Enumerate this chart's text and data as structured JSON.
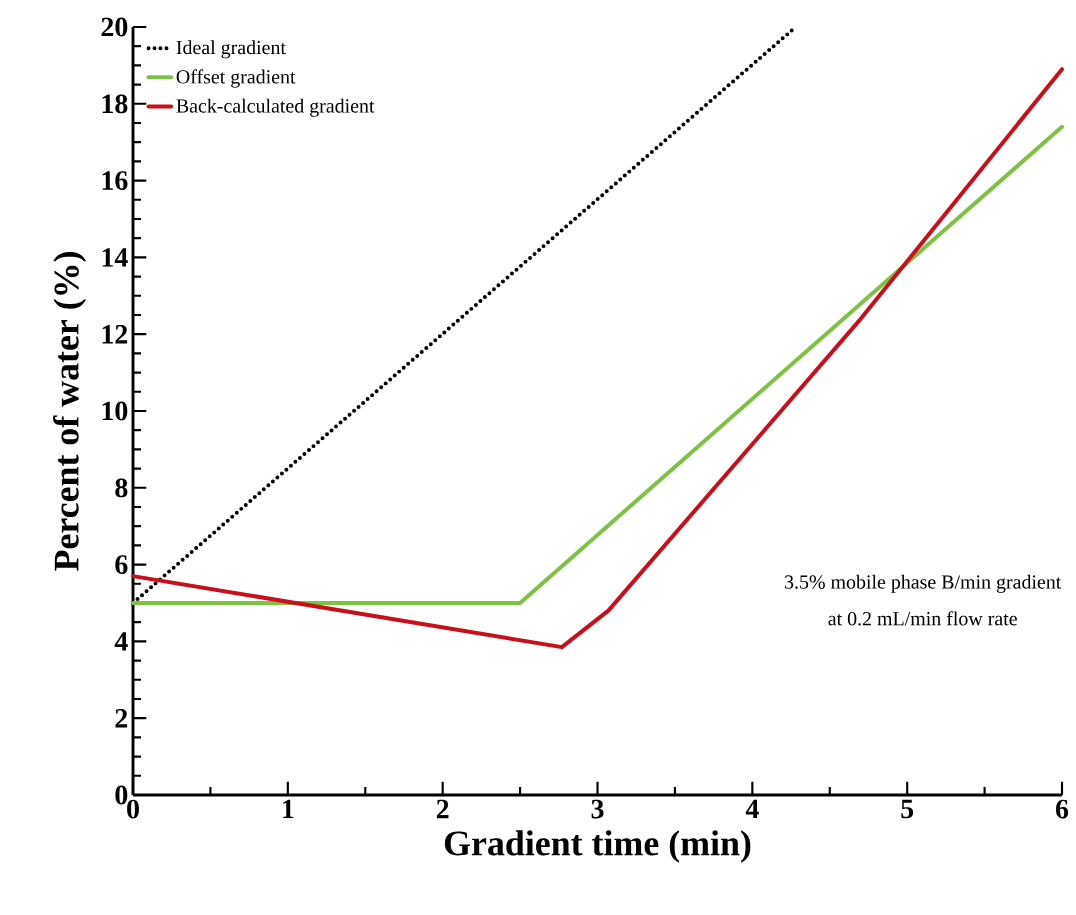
{
  "chart_data": {
    "type": "line",
    "xlabel": "Gradient time (min)",
    "ylabel": "Percent of water (%)",
    "xlim": [
      0,
      6
    ],
    "xticks": [
      0,
      1,
      2,
      3,
      4,
      5,
      6
    ],
    "ylim": [
      0,
      20
    ],
    "yticks": [
      0,
      2,
      4,
      6,
      8,
      10,
      12,
      14,
      16,
      18,
      20
    ],
    "grid": false,
    "legend": "top left",
    "series": [
      {
        "name": "Ideal gradient",
        "color": "#000000",
        "line_style": "dotted",
        "x": [
          0,
          4.28
        ],
        "values": [
          5,
          20
        ]
      },
      {
        "name": "Offset gradient",
        "color": "#7dc242",
        "line_style": "solid",
        "x": [
          0,
          2.5,
          6
        ],
        "values": [
          5,
          5,
          17.4
        ]
      },
      {
        "name": "Back-calculated gradient",
        "color": "#c8101a",
        "line_style": "solid",
        "x": [
          0,
          2.77,
          3.07,
          4.7,
          6
        ],
        "values": [
          5.7,
          3.85,
          4.8,
          12.4,
          18.9
        ]
      }
    ],
    "annotations": [
      "3.5% mobile phase B/min gradient",
      "at 0.2 mL/min flow rate"
    ]
  }
}
